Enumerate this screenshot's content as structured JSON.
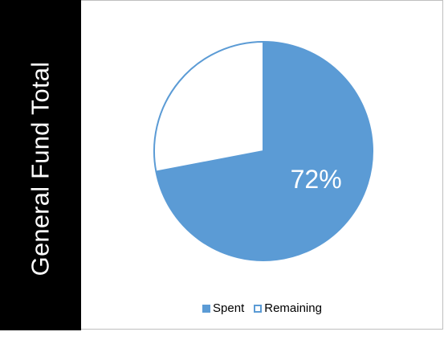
{
  "sidebar": {
    "title": "General Fund Total"
  },
  "colors": {
    "spent": "#5b9bd5",
    "remaining": "#ffffff",
    "remaining_border": "#5b9bd5",
    "sidebar_bg": "#000000"
  },
  "chart_data": {
    "type": "pie",
    "categories": [
      "Spent",
      "Remaining"
    ],
    "values": [
      72,
      28
    ],
    "data_labels": [
      "72%",
      ""
    ],
    "legend_position": "bottom",
    "legend": [
      {
        "label": "Spent"
      },
      {
        "label": "Remaining"
      }
    ]
  }
}
